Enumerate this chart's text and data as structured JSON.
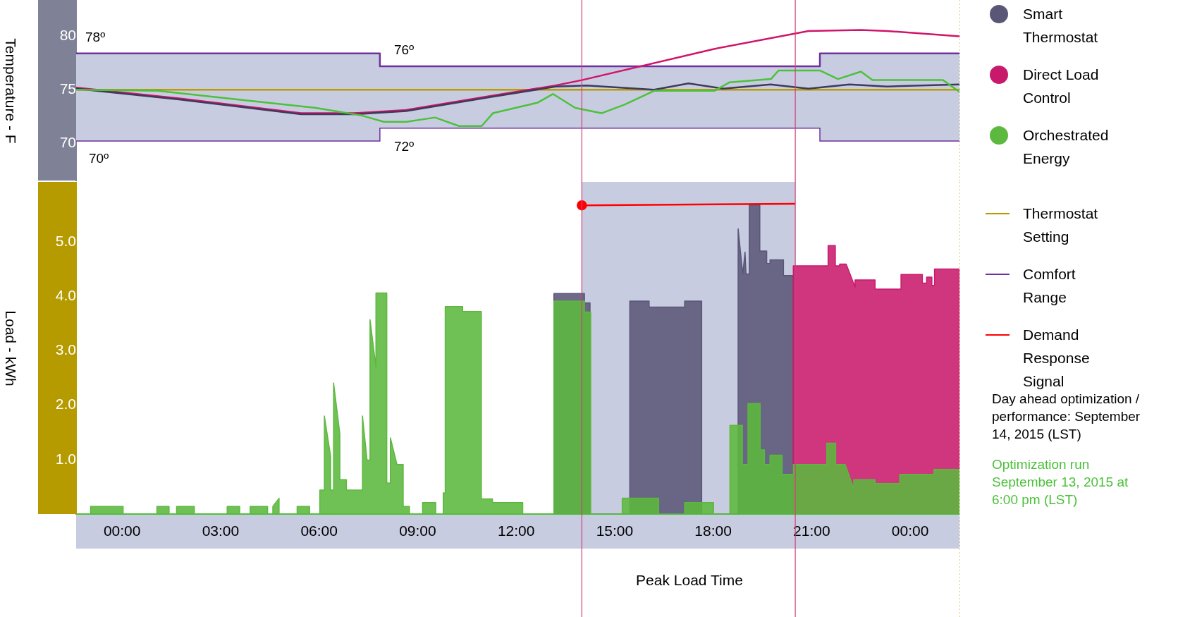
{
  "chart_data": [
    {
      "type": "line",
      "ylabel": "Temperature - F",
      "xlim": [
        -1.4,
        25.5
      ],
      "ylim": [
        66.5,
        83.4
      ],
      "yticks": [
        70,
        75,
        80
      ],
      "tick_labels": "y",
      "legend": "right",
      "ref_lines": [
        {
          "axis": "x",
          "value": 14.0,
          "color": "#d0407a"
        },
        {
          "axis": "x",
          "value": 20.5,
          "color": "#d0407a"
        }
      ],
      "annotations": [
        "78º",
        "76º",
        "70º",
        "72º"
      ],
      "series": [
        {
          "name": "Thermostat Setting",
          "color": "#b89c00",
          "x": [
            -1.4,
            25.5
          ],
          "values": [
            75.0,
            75.0
          ]
        },
        {
          "name": "Comfort Range",
          "type": "step",
          "color": "#7030a0",
          "x": [
            -1.4,
            7.85,
            21.25,
            25.5
          ],
          "values": [
            78.4,
            77.2,
            78.4,
            78.4
          ],
          "lower": [
            70.2,
            71.4,
            70.2,
            70.2
          ],
          "upper": [
            78.4,
            77.2,
            78.4,
            78.4
          ]
        },
        {
          "color": "#d0146a",
          "x": [
            -1.4,
            2.0,
            5.45,
            7.05,
            8.65,
            11.2,
            13.2,
            14.0,
            18.0,
            20.9,
            22.5,
            23.3,
            25.5
          ],
          "values": [
            75.2,
            74.1,
            72.8,
            72.8,
            73.1,
            74.4,
            75.4,
            75.9,
            78.8,
            80.5,
            80.6,
            80.5,
            80.0
          ]
        },
        {
          "color": "#3d3a5e",
          "x": [
            -1.4,
            2.0,
            5.45,
            7.05,
            8.65,
            11.2,
            13.2,
            14.15,
            16.2,
            17.25,
            18.3,
            19.75,
            20.9,
            22.15,
            23.3,
            25.5
          ],
          "values": [
            75.1,
            74.0,
            72.7,
            72.7,
            73.0,
            74.3,
            75.3,
            75.4,
            75.0,
            75.6,
            75.1,
            75.5,
            75.1,
            75.5,
            75.3,
            75.5
          ]
        },
        {
          "color": "#4cc13a",
          "x": [
            -1.4,
            1.1,
            3.16,
            5.9,
            7.28,
            7.97,
            8.66,
            9.53,
            10.26,
            10.95,
            11.29,
            12.66,
            13.12,
            13.8,
            14.6,
            15.3,
            16.2,
            18.04,
            18.5,
            19.76,
            19.99,
            21.25,
            21.8,
            22.5,
            22.85,
            25.0,
            25.5
          ],
          "values": [
            75.0,
            74.9,
            74.2,
            73.3,
            72.6,
            72.0,
            72.0,
            72.4,
            71.6,
            71.6,
            72.8,
            73.8,
            74.6,
            73.3,
            72.8,
            73.6,
            74.9,
            74.9,
            75.7,
            76.0,
            76.8,
            76.8,
            76.0,
            76.7,
            75.9,
            75.9,
            74.8
          ]
        }
      ]
    },
    {
      "type": "area",
      "ylabel": "Load - kWh",
      "xlim": [
        -1.4,
        25.5
      ],
      "xticks": [
        {
          "value": 0,
          "label": "00:00"
        },
        {
          "value": 3,
          "label": "03:00"
        },
        {
          "value": 6,
          "label": "06:00"
        },
        {
          "value": 9,
          "label": "09:00"
        },
        {
          "value": 12,
          "label": "12:00"
        },
        {
          "value": 15,
          "label": "15:00"
        },
        {
          "value": 18,
          "label": "18:00"
        },
        {
          "value": 21,
          "label": "21:00"
        },
        {
          "value": 24,
          "label": "00:00"
        }
      ],
      "ylim": [
        0,
        6.1
      ],
      "yticks": [
        {
          "value": 1,
          "label": "1.0"
        },
        {
          "value": 2,
          "label": "2.0"
        },
        {
          "value": 3,
          "label": "3.0"
        },
        {
          "value": 4,
          "label": "4.0"
        },
        {
          "value": 5,
          "label": "5.0"
        }
      ],
      "legend": "right",
      "bands": [
        {
          "axis": "x",
          "from": 14.0,
          "to": 20.5,
          "color": "#c8cce0"
        }
      ],
      "ref_lines": [
        {
          "axis": "x",
          "value": 14.0,
          "color": "#d0407a"
        },
        {
          "axis": "x",
          "value": 20.5,
          "color": "#d0407a"
        }
      ],
      "annotations": [
        "Peak Load Time",
        "Day ahead optimization / performance: September 14, 2015 (LST)",
        "Optimization run September 13, 2015 at 6:00 pm (LST)"
      ],
      "series": [
        {
          "name": "Smart Thermostat",
          "color": "#5a5678",
          "x": [
            13.15,
            13.15,
            14.08,
            14.08,
            14.25,
            14.25,
            15.46,
            15.46,
            16.05,
            16.05,
            17.13,
            17.13,
            17.65,
            17.65,
            18.76,
            18.76,
            18.9,
            18.97,
            19.0,
            19.1,
            19.1,
            19.42,
            19.42,
            19.63,
            19.63,
            19.73,
            19.73,
            20.14,
            20.14,
            20.44,
            20.44
          ],
          "values": [
            0,
            4.05,
            4.05,
            3.88,
            3.88,
            0,
            0,
            3.91,
            3.91,
            3.8,
            3.8,
            3.91,
            3.91,
            0,
            0,
            5.24,
            4.41,
            4.81,
            4.41,
            4.41,
            5.68,
            5.68,
            4.83,
            4.83,
            4.6,
            4.6,
            4.67,
            4.67,
            4.38,
            4.38,
            0
          ]
        },
        {
          "name": "Direct Load Control",
          "color": "#c81a6c",
          "x": [
            20.44,
            20.44,
            21.5,
            21.5,
            21.72,
            21.72,
            21.85,
            21.85,
            22.05,
            22.32,
            22.32,
            22.93,
            22.93,
            23.72,
            23.72,
            24.37,
            24.37,
            24.5,
            24.5,
            24.66,
            24.66,
            24.74,
            24.74,
            25.5,
            25.5
          ],
          "values": [
            0,
            4.56,
            4.56,
            4.93,
            4.93,
            4.56,
            4.56,
            4.59,
            4.59,
            4.17,
            4.3,
            4.3,
            4.13,
            4.13,
            4.4,
            4.4,
            4.24,
            4.24,
            4.35,
            4.35,
            4.2,
            4.2,
            4.5,
            4.5,
            0
          ]
        },
        {
          "name": "Orchestrated Energy",
          "color": "#5cb83e",
          "x": [
            -1.4,
            -0.96,
            -0.96,
            0.03,
            0.03,
            1.06,
            1.06,
            1.43,
            1.43,
            1.66,
            1.66,
            2.2,
            2.2,
            3.2,
            3.2,
            3.58,
            3.58,
            3.9,
            3.9,
            4.43,
            4.43,
            4.59,
            4.59,
            4.78,
            4.78,
            5.33,
            5.33,
            5.71,
            5.71,
            6.02,
            6.02,
            6.16,
            6.16,
            6.35,
            6.35,
            6.44,
            6.44,
            6.63,
            6.63,
            6.83,
            6.83,
            7.32,
            7.32,
            7.46,
            7.55,
            7.55,
            7.73,
            7.73,
            8.06,
            8.06,
            8.17,
            8.17,
            8.37,
            8.56,
            8.56,
            8.75,
            8.75,
            9.15,
            9.15,
            9.55,
            9.55,
            9.78,
            9.78,
            9.84,
            9.84,
            10.37,
            10.37,
            10.94,
            10.94,
            11.28,
            11.28,
            12.2,
            12.2,
            13.15,
            13.15,
            14.08,
            14.08,
            14.27,
            14.27,
            15.23,
            15.23,
            16.34,
            16.34,
            17.13,
            17.13,
            18.01,
            18.01,
            18.51,
            18.51,
            18.89,
            18.89,
            19.06,
            19.06,
            19.43,
            19.43,
            19.56,
            19.56,
            19.73,
            19.73,
            20.1,
            20.1,
            20.44,
            20.44,
            21.46,
            21.46,
            21.73,
            21.73,
            22.02,
            22.28,
            22.28,
            22.93,
            22.93,
            23.68,
            23.68,
            24.72,
            24.72,
            25.5,
            25.5
          ],
          "values": [
            0,
            0,
            0.14,
            0.14,
            0,
            0,
            0.14,
            0.14,
            0,
            0,
            0.14,
            0.14,
            0,
            0,
            0.14,
            0.14,
            0,
            0,
            0.14,
            0.14,
            0,
            0,
            0.14,
            0.29,
            0,
            0,
            0.14,
            0.14,
            0,
            0,
            0.44,
            0.44,
            1.8,
            1.06,
            0.44,
            0.44,
            2.41,
            1.48,
            0.63,
            0.63,
            0.44,
            0.44,
            1.8,
            0.99,
            0.99,
            3.57,
            2.7,
            4.06,
            4.06,
            0.57,
            0.57,
            1.4,
            0.91,
            0.91,
            0.14,
            0.14,
            0,
            0,
            0.21,
            0.21,
            0,
            0,
            0.39,
            0.39,
            3.81,
            3.81,
            3.72,
            3.72,
            0.28,
            0.28,
            0.21,
            0.21,
            0,
            0,
            3.91,
            3.91,
            3.71,
            3.71,
            0,
            0,
            0.29,
            0.29,
            0,
            0,
            0.21,
            0.21,
            0,
            0,
            1.63,
            1.63,
            0.91,
            0.91,
            2.03,
            2.03,
            1.18,
            1.18,
            0.91,
            0.91,
            1.08,
            1.08,
            0.73,
            0.73,
            0.91,
            0.91,
            1.3,
            1.3,
            0.91,
            0.91,
            0.46,
            0.63,
            0.63,
            0.56,
            0.56,
            0.73,
            0.73,
            0.82,
            0.82,
            0
          ]
        },
        {
          "name": "Demand Response Signal",
          "type": "line",
          "color": "#ff0000",
          "marker": "circle",
          "x": [
            14.0,
            20.5
          ],
          "values": [
            5.67,
            5.7
          ]
        }
      ]
    }
  ]
}
